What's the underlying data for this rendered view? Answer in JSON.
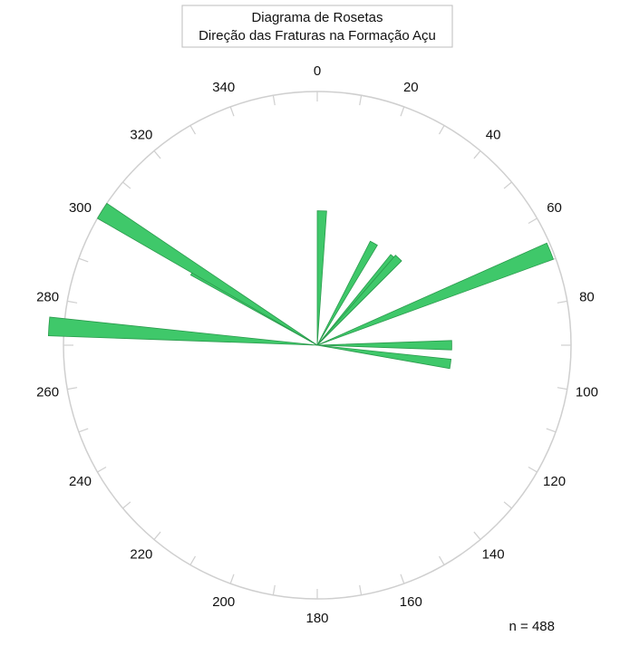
{
  "chart_data": {
    "type": "rose",
    "title": "Diagrama de Rosetas",
    "subtitle": "Direção das Fraturas na Formação Açu",
    "angle_unit": "degrees",
    "direction": "clockwise",
    "zero_location": "top",
    "bin_width_deg": 4,
    "rmax": 1.0,
    "tick_labels": [
      "0",
      "20",
      "40",
      "60",
      "80",
      "100",
      "120",
      "140",
      "160",
      "180",
      "200",
      "220",
      "240",
      "260",
      "280",
      "300",
      "320",
      "340"
    ],
    "petals": [
      {
        "start": 0,
        "end": 4,
        "value": 0.53
      },
      {
        "start": 27,
        "end": 31,
        "value": 0.46
      },
      {
        "start": 39,
        "end": 43,
        "value": 0.46
      },
      {
        "start": 41,
        "end": 45,
        "value": 0.47
      },
      {
        "start": 66,
        "end": 70,
        "value": 0.99
      },
      {
        "start": 88,
        "end": 92,
        "value": 0.53
      },
      {
        "start": 96,
        "end": 100,
        "value": 0.53
      },
      {
        "start": 272,
        "end": 276,
        "value": 1.06
      },
      {
        "start": 299,
        "end": 303,
        "value": 0.57
      },
      {
        "start": 300,
        "end": 304,
        "value": 1.0
      }
    ],
    "petal_color": "#3fc86a",
    "petal_edge_color": "#2a9a4c",
    "circle_color": "#cfcfcf",
    "grid": false,
    "n_label": "n = 488"
  }
}
